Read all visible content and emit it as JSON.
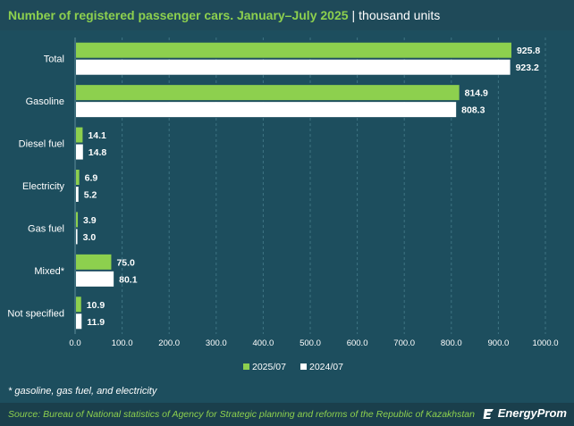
{
  "header": {
    "title": "Number of registered passenger cars. January–July 2025",
    "separator": "|",
    "unit": "thousand units"
  },
  "chart_data": {
    "type": "bar",
    "orientation": "horizontal",
    "categories": [
      "Total",
      "Gasoline",
      "Diesel fuel",
      "Electricity",
      "Gas fuel",
      "Mixed*",
      "Not specified"
    ],
    "series": [
      {
        "name": "2025/07",
        "color": "#8dd04e",
        "values": [
          925.8,
          814.9,
          14.1,
          6.9,
          3.9,
          75.0,
          10.9
        ]
      },
      {
        "name": "2024/07",
        "color": "#ffffff",
        "values": [
          923.2,
          808.3,
          14.8,
          5.2,
          3.0,
          80.1,
          11.9
        ]
      }
    ],
    "xlim": [
      0,
      1000
    ],
    "xticks": [
      "0.0",
      "100.0",
      "200.0",
      "300.0",
      "400.0",
      "500.0",
      "600.0",
      "700.0",
      "800.0",
      "900.0",
      "1000.0"
    ],
    "grid": "vertical-dashed",
    "legend_position": "bottom",
    "data_labels": true
  },
  "footnote": "* gasoline, gas fuel, and electricity",
  "footer": {
    "source": "Source: Bureau of National statistics of Agency for Strategic planning and reforms of the Republic of Kazakhstan",
    "brand": "EnergyProm"
  },
  "colors": {
    "background": "#1d4e5e",
    "accent_green": "#8dd04e",
    "white": "#ffffff"
  }
}
